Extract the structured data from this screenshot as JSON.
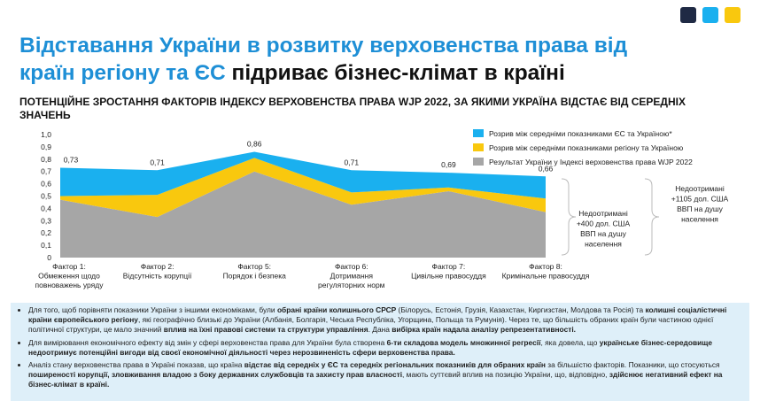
{
  "header": {
    "title": [
      "Відставання України в розвитку верховенства права від",
      "країн регіону та ЄС",
      "підриває бізнес-клімат в країні"
    ],
    "subtitle": [
      "ПОТЕНЦІЙНЕ ЗРОСТАННЯ ФАКТОРІВ ІНДЕКСУ ВЕРХОВЕНСТВА ПРАВА WJP 2022, ЗА ЯКИМИ УКРАЇНА ВІДСТАЄ ВІД СЕРЕДНІХ",
      "ЗНАЧЕНЬ"
    ]
  },
  "chart_data": {
    "type": "stacked_area",
    "categories": [
      [
        "Фактор 1:",
        "Обмеження щодо",
        "повноважень уряду"
      ],
      [
        "Фактор 2:",
        "Відсутність корупції"
      ],
      [
        "Фактор 5:",
        "Порядок і безпека"
      ],
      [
        "Фактор 6:",
        "Дотримання",
        "регуляторних норм"
      ],
      [
        "Фактор 7:",
        "Цивільне правосуддя"
      ],
      [
        "Фактор 8:",
        "Кримінальне правосуддя"
      ]
    ],
    "series": [
      {
        "name": "Результат України у Індексі верховенства права WJP 2022",
        "color": "#a6a6a6",
        "values": [
          0.47,
          0.33,
          0.7,
          0.43,
          0.54,
          0.37
        ]
      },
      {
        "name": "Розрив між середніми показниками регіону та Україною",
        "color": "#f9c80e",
        "values": [
          0.03,
          0.18,
          0.11,
          0.1,
          0.03,
          0.11
        ]
      },
      {
        "name": "Розрив між середніми показниками ЄС та Україною*",
        "color": "#1ab0ef",
        "values": [
          0.23,
          0.2,
          0.05,
          0.18,
          0.12,
          0.18
        ]
      }
    ],
    "total_labels": [
      "0,73",
      "0,71",
      "0,86",
      "0,71",
      "0,69",
      "0,66"
    ],
    "ylim": [
      0,
      1.0
    ],
    "yticks": [
      0,
      {
        "value": 0.1,
        "label": "0,1"
      },
      {
        "value": 0.2,
        "label": "0,2"
      },
      {
        "value": 0.3,
        "label": "0,3"
      },
      {
        "value": 0.4,
        "label": "0,4"
      },
      {
        "value": 0.5,
        "label": "0,5"
      },
      {
        "value": 0.6,
        "label": "0,6"
      },
      {
        "value": 0.7,
        "label": "0,7"
      },
      {
        "value": 0.8,
        "label": "0,8"
      },
      {
        "value": 0.9,
        "label": "0,9"
      },
      {
        "value": 1.0,
        "label": "1,0"
      }
    ],
    "grid": false,
    "annotations": [
      [
        "Недоотримані",
        "+400 дол. США",
        "ВВП на душу",
        "населення"
      ],
      [
        "Недоотримані",
        "+1105 дол. США",
        "ВВП на душу",
        "населення"
      ]
    ]
  },
  "notes": [
    [
      {
        "text": "Для того, щоб порівняти показники України з іншими економіками, були ",
        "bold": false
      },
      {
        "text": "обрані країни колишнього СРСР",
        "bold": true
      },
      {
        "text": " (Білорусь, Естонія, Грузія, Казахстан, Киргизстан, Молдова та Росія) та ",
        "bold": false
      },
      {
        "text": "колишні соціалістичні країни європейського регіону",
        "bold": true
      },
      {
        "text": ", які географічно близькі до України (Албанія, Болгарія, Чеська Республіка, Угорщина, Польща та Румунія). Через те, що більшість обраних країн були частиною однієї політичної структури, це мало значний ",
        "bold": false
      },
      {
        "text": "вплив на їхні правові системи та структури управління",
        "bold": true
      },
      {
        "text": ". Дана ",
        "bold": false
      },
      {
        "text": "вибірка країн надала аналізу репрезентативності.",
        "bold": true
      }
    ],
    [
      {
        "text": "Для вимірювання економічного ефекту від змін у сфері верховенства права для України була створена ",
        "bold": false
      },
      {
        "text": "6-ти складова модель множинної регресії",
        "bold": true
      },
      {
        "text": ", яка довела, що ",
        "bold": false
      },
      {
        "text": "українське бізнес-середовище недоотримує потенційні вигоди від своєї економічної діяльності через нерозвиненість сфери верховенства права.",
        "bold": true
      }
    ],
    [
      {
        "text": "Аналіз стану верховенства права в Україні показав, що країна ",
        "bold": false
      },
      {
        "text": "відстає від середніх у ЄС та середніх регіональних показників для обраних країн",
        "bold": true
      },
      {
        "text": " за більшістю факторів. Показники, що стосуються ",
        "bold": false
      },
      {
        "text": "поширеності корупції, зловживання владою з боку державних службовців та захисту прав власності",
        "bold": true
      },
      {
        "text": ", мають суттєвий вплив на позицію України, що, відповідно, ",
        "bold": false
      },
      {
        "text": "здійснює негативний ефект на бізнес-клімат в країні.",
        "bold": true
      }
    ]
  ]
}
